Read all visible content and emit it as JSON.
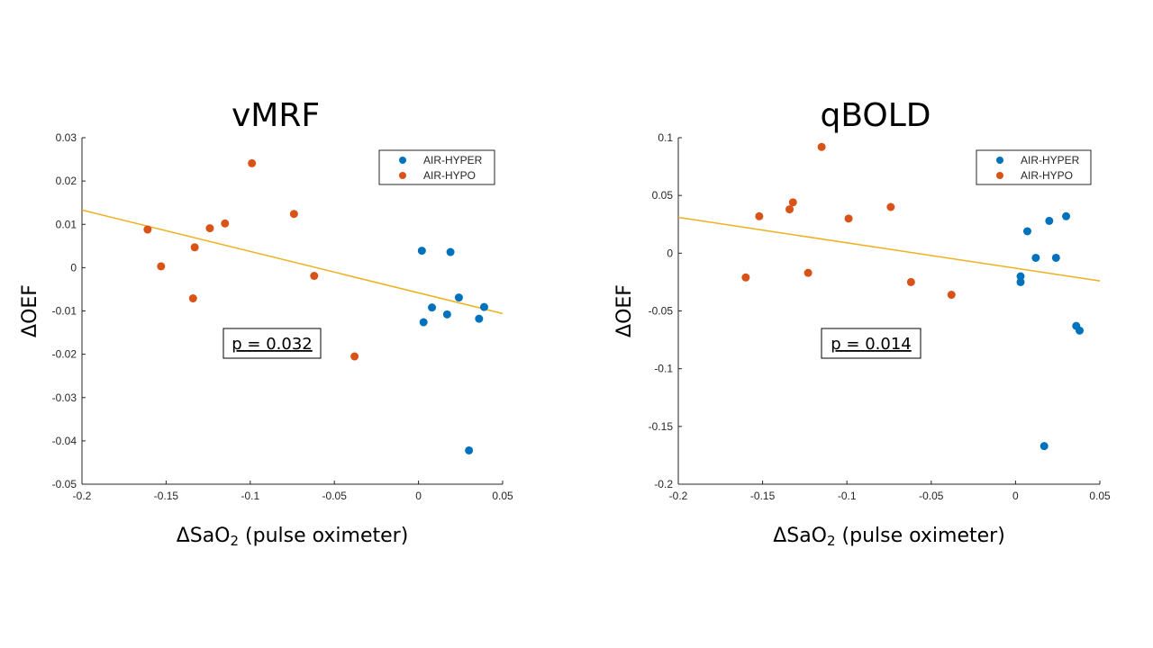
{
  "chart_data": [
    {
      "type": "scatter",
      "title": "vMRF",
      "xlabel_main": "ΔSaO",
      "xlabel_sub": "2",
      "xlabel_rest": " (pulse oximeter)",
      "ylabel": "ΔOEF",
      "xlim": [
        -0.2,
        0.05
      ],
      "ylim": [
        -0.05,
        0.03
      ],
      "xticks": [
        -0.2,
        -0.15,
        -0.1,
        -0.05,
        0,
        0.05
      ],
      "xtick_labels": [
        "-0.2",
        "-0.15",
        "-0.1",
        "-0.05",
        "0",
        "0.05"
      ],
      "yticks": [
        -0.05,
        -0.04,
        -0.03,
        -0.02,
        -0.01,
        0,
        0.01,
        0.02,
        0.03
      ],
      "ytick_labels": [
        "-0.05",
        "-0.04",
        "-0.03",
        "-0.02",
        "-0.01",
        "0",
        "0.01",
        "0.02",
        "0.03"
      ],
      "annotation": "p = 0.032",
      "legend_position": "top-right",
      "series": [
        {
          "name": "AIR-HYPER",
          "color": "#0072BD",
          "points": [
            [
              0.002,
              0.0039
            ],
            [
              0.019,
              0.0036
            ],
            [
              0.003,
              -0.0126
            ],
            [
              0.008,
              -0.0092
            ],
            [
              0.017,
              -0.0108
            ],
            [
              0.024,
              -0.0069
            ],
            [
              0.036,
              -0.0118
            ],
            [
              0.039,
              -0.0091
            ],
            [
              0.03,
              -0.0422
            ]
          ]
        },
        {
          "name": "AIR-HYPO",
          "color": "#D95319",
          "points": [
            [
              -0.161,
              0.0088
            ],
            [
              -0.153,
              0.0003
            ],
            [
              -0.133,
              0.0047
            ],
            [
              -0.134,
              -0.0071
            ],
            [
              -0.124,
              0.0091
            ],
            [
              -0.115,
              0.0102
            ],
            [
              -0.099,
              0.0241
            ],
            [
              -0.074,
              0.0124
            ],
            [
              -0.062,
              -0.0019
            ],
            [
              -0.038,
              -0.0205
            ]
          ]
        }
      ],
      "fit_line": {
        "color": "#EDB120",
        "x": [
          -0.2,
          0.05
        ],
        "y": [
          0.0133,
          -0.0106
        ]
      }
    },
    {
      "type": "scatter",
      "title": "qBOLD",
      "xlabel_main": "ΔSaO",
      "xlabel_sub": "2",
      "xlabel_rest": " (pulse oximeter)",
      "ylabel": "ΔOEF",
      "xlim": [
        -0.2,
        0.05
      ],
      "ylim": [
        -0.2,
        0.1
      ],
      "xticks": [
        -0.2,
        -0.15,
        -0.1,
        -0.05,
        0,
        0.05
      ],
      "xtick_labels": [
        "-0.2",
        "-0.15",
        "-0.1",
        "-0.05",
        "0",
        "0.05"
      ],
      "yticks": [
        -0.2,
        -0.15,
        -0.1,
        -0.05,
        0,
        0.05,
        0.1
      ],
      "ytick_labels": [
        "-0.2",
        "-0.15",
        "-0.1",
        "-0.05",
        "0",
        "0.05",
        "0.1"
      ],
      "annotation": "p = 0.014",
      "legend_position": "top-right",
      "series": [
        {
          "name": "AIR-HYPER",
          "color": "#0072BD",
          "points": [
            [
              0.03,
              0.032
            ],
            [
              0.02,
              0.028
            ],
            [
              0.007,
              0.019
            ],
            [
              0.012,
              -0.004
            ],
            [
              0.024,
              -0.004
            ],
            [
              0.003,
              -0.02
            ],
            [
              0.003,
              -0.025
            ],
            [
              0.036,
              -0.063
            ],
            [
              0.038,
              -0.067
            ],
            [
              0.017,
              -0.167
            ]
          ]
        },
        {
          "name": "AIR-HYPO",
          "color": "#D95319",
          "points": [
            [
              -0.115,
              0.092
            ],
            [
              -0.132,
              0.044
            ],
            [
              -0.134,
              0.038
            ],
            [
              -0.152,
              0.032
            ],
            [
              -0.099,
              0.03
            ],
            [
              -0.074,
              0.04
            ],
            [
              -0.16,
              -0.021
            ],
            [
              -0.123,
              -0.017
            ],
            [
              -0.062,
              -0.025
            ],
            [
              -0.038,
              -0.036
            ]
          ]
        }
      ],
      "fit_line": {
        "color": "#EDB120",
        "x": [
          -0.2,
          0.05
        ],
        "y": [
          0.031,
          -0.024
        ]
      }
    }
  ]
}
